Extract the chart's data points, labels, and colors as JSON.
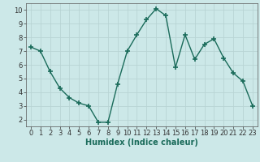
{
  "x": [
    0,
    1,
    2,
    3,
    4,
    5,
    6,
    7,
    8,
    9,
    10,
    11,
    12,
    13,
    14,
    15,
    16,
    17,
    18,
    19,
    20,
    21,
    22,
    23
  ],
  "y": [
    7.3,
    7.0,
    5.5,
    4.3,
    3.6,
    3.2,
    3.0,
    1.8,
    1.8,
    4.6,
    7.0,
    8.2,
    9.3,
    10.1,
    9.6,
    5.8,
    8.2,
    6.4,
    7.5,
    7.9,
    6.5,
    5.4,
    4.8,
    3.0
  ],
  "line_color": "#1a6b5a",
  "marker": "+",
  "marker_size": 4,
  "marker_lw": 1.2,
  "line_width": 1.0,
  "background_color": "#cce8e8",
  "grid_color": "#b8d4d4",
  "xlabel": "Humidex (Indice chaleur)",
  "xlabel_fontsize": 7,
  "tick_fontsize": 6,
  "xlim": [
    -0.5,
    23.5
  ],
  "ylim": [
    1.5,
    10.5
  ],
  "yticks": [
    2,
    3,
    4,
    5,
    6,
    7,
    8,
    9,
    10
  ],
  "xticks": [
    0,
    1,
    2,
    3,
    4,
    5,
    6,
    7,
    8,
    9,
    10,
    11,
    12,
    13,
    14,
    15,
    16,
    17,
    18,
    19,
    20,
    21,
    22,
    23
  ]
}
